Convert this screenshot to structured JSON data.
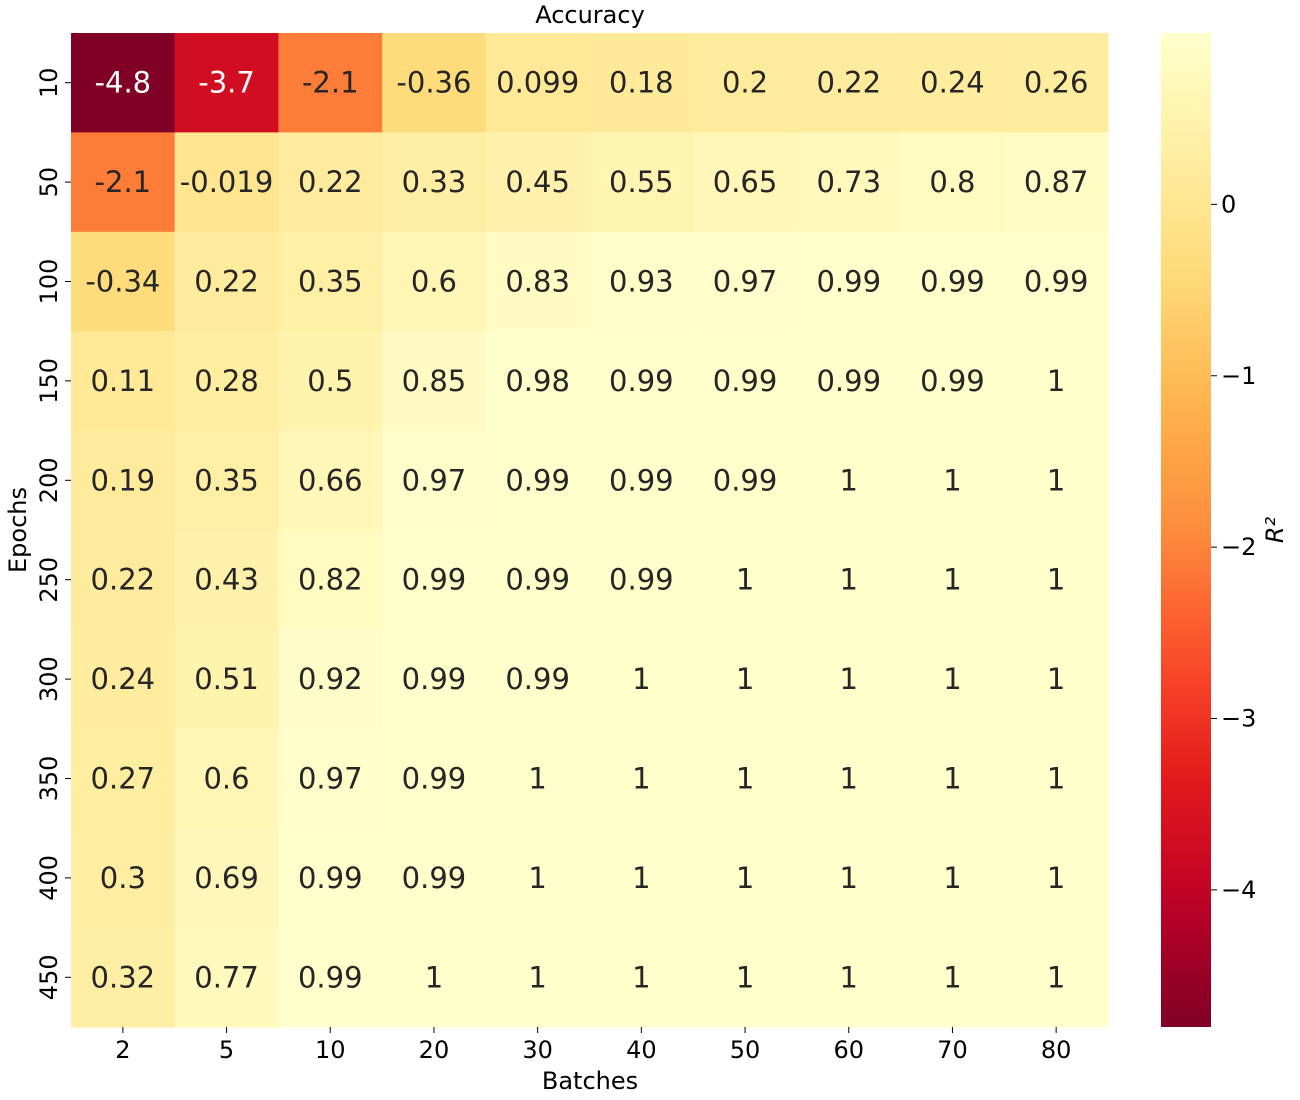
{
  "chart_data": {
    "type": "heatmap",
    "title": "Accuracy",
    "xlabel": "Batches",
    "ylabel": "Epochs",
    "x_categories": [
      "2",
      "5",
      "10",
      "20",
      "30",
      "40",
      "50",
      "60",
      "70",
      "80"
    ],
    "y_categories": [
      "10",
      "50",
      "100",
      "150",
      "200",
      "250",
      "300",
      "350",
      "400",
      "450"
    ],
    "values": [
      [
        -4.8,
        -3.7,
        -2.1,
        -0.36,
        0.099,
        0.18,
        0.2,
        0.22,
        0.24,
        0.26
      ],
      [
        -2.1,
        -0.019,
        0.22,
        0.33,
        0.45,
        0.55,
        0.65,
        0.73,
        0.8,
        0.87
      ],
      [
        -0.34,
        0.22,
        0.35,
        0.6,
        0.83,
        0.93,
        0.97,
        0.99,
        0.99,
        0.99
      ],
      [
        0.11,
        0.28,
        0.5,
        0.85,
        0.98,
        0.99,
        0.99,
        0.99,
        0.99,
        1
      ],
      [
        0.19,
        0.35,
        0.66,
        0.97,
        0.99,
        0.99,
        0.99,
        1,
        1,
        1
      ],
      [
        0.22,
        0.43,
        0.82,
        0.99,
        0.99,
        0.99,
        1,
        1,
        1,
        1
      ],
      [
        0.24,
        0.51,
        0.92,
        0.99,
        0.99,
        1,
        1,
        1,
        1,
        1
      ],
      [
        0.27,
        0.6,
        0.97,
        0.99,
        1,
        1,
        1,
        1,
        1,
        1
      ],
      [
        0.3,
        0.69,
        0.99,
        0.99,
        1,
        1,
        1,
        1,
        1,
        1
      ],
      [
        0.32,
        0.77,
        0.99,
        1,
        1,
        1,
        1,
        1,
        1,
        1
      ]
    ],
    "labels": [
      [
        "-4.8",
        "-3.7",
        "-2.1",
        "-0.36",
        "0.099",
        "0.18",
        "0.2",
        "0.22",
        "0.24",
        "0.26"
      ],
      [
        "-2.1",
        "-0.019",
        "0.22",
        "0.33",
        "0.45",
        "0.55",
        "0.65",
        "0.73",
        "0.8",
        "0.87"
      ],
      [
        "-0.34",
        "0.22",
        "0.35",
        "0.6",
        "0.83",
        "0.93",
        "0.97",
        "0.99",
        "0.99",
        "0.99"
      ],
      [
        "0.11",
        "0.28",
        "0.5",
        "0.85",
        "0.98",
        "0.99",
        "0.99",
        "0.99",
        "0.99",
        "1"
      ],
      [
        "0.19",
        "0.35",
        "0.66",
        "0.97",
        "0.99",
        "0.99",
        "0.99",
        "1",
        "1",
        "1"
      ],
      [
        "0.22",
        "0.43",
        "0.82",
        "0.99",
        "0.99",
        "0.99",
        "1",
        "1",
        "1",
        "1"
      ],
      [
        "0.24",
        "0.51",
        "0.92",
        "0.99",
        "0.99",
        "1",
        "1",
        "1",
        "1",
        "1"
      ],
      [
        "0.27",
        "0.6",
        "0.97",
        "0.99",
        "1",
        "1",
        "1",
        "1",
        "1",
        "1"
      ],
      [
        "0.3",
        "0.69",
        "0.99",
        "0.99",
        "1",
        "1",
        "1",
        "1",
        "1",
        "1"
      ],
      [
        "0.32",
        "0.77",
        "0.99",
        "1",
        "1",
        "1",
        "1",
        "1",
        "1",
        "1"
      ]
    ],
    "colorscale": "YlOrRd_r",
    "vmin": -4.8,
    "vmax": 1,
    "colorbar": {
      "label": "R²",
      "ticks": [
        0,
        -1,
        -2,
        -3,
        -4
      ],
      "tick_labels": [
        "0",
        "−1",
        "−2",
        "−3",
        "−4"
      ]
    }
  }
}
